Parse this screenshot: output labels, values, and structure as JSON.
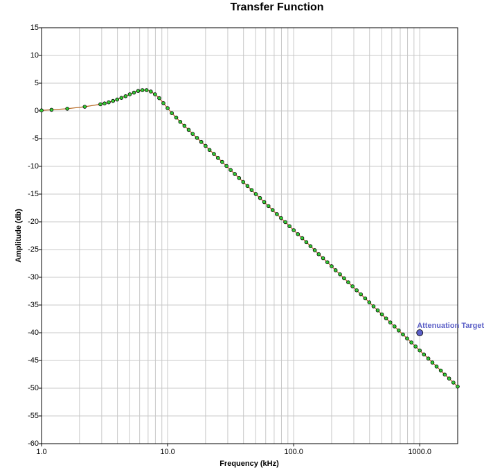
{
  "chart_data": {
    "type": "line",
    "title": "Transfer Function",
    "x_label": "Frequency (kHz)",
    "y_label": "Amplitude (db)",
    "log_x": true,
    "grid": true,
    "xlim": [
      1,
      2000
    ],
    "ylim": [
      -60,
      15
    ],
    "xticks": [
      {
        "value": 1,
        "label": "1.0"
      },
      {
        "value": 10,
        "label": "10.0"
      },
      {
        "value": 100,
        "label": "100.0"
      },
      {
        "value": 1000,
        "label": "1000.0"
      }
    ],
    "xminorticks": [
      2,
      3,
      4,
      5,
      6,
      7,
      8,
      9,
      20,
      30,
      40,
      50,
      60,
      70,
      80,
      90,
      200,
      300,
      400,
      500,
      600,
      700,
      800,
      900,
      2000
    ],
    "yticks": [
      -60,
      -55,
      -50,
      -45,
      -40,
      -35,
      -30,
      -25,
      -20,
      -15,
      -10,
      -5,
      0,
      5,
      10,
      15
    ],
    "x": [
      1,
      1.2,
      1.6,
      2.2,
      2.93,
      3.16,
      3.41,
      3.69,
      3.98,
      4.3,
      4.64,
      5.01,
      5.41,
      5.84,
      6.31,
      6.81,
      7.36,
      7.94,
      8.58,
      9.26,
      10,
      10.8,
      11.7,
      12.6,
      13.6,
      14.7,
      15.8,
      17.1,
      18.5,
      20,
      21.5,
      23.3,
      25.1,
      27.1,
      29.3,
      31.6,
      34.1,
      36.9,
      39.8,
      43,
      46.4,
      50.1,
      54.1,
      58.4,
      63.1,
      68.1,
      73.6,
      79.4,
      85.8,
      92.6,
      100,
      108,
      117,
      126,
      136,
      147,
      158,
      171,
      185,
      200,
      215,
      233,
      251,
      271,
      293,
      316,
      341,
      369,
      398,
      430,
      464,
      501,
      541,
      584,
      631,
      681,
      736,
      794,
      858,
      926,
      1000,
      1080,
      1170,
      1260,
      1360,
      1470,
      1580,
      1710,
      1850,
      2000
    ],
    "series": [
      {
        "color": "#b5651d",
        "marker_color": "#33cc33",
        "values": [
          0.1,
          0.2,
          0.4,
          0.75,
          1.2,
          1.35,
          1.55,
          1.8,
          2.05,
          2.35,
          2.65,
          3.0,
          3.3,
          3.6,
          3.75,
          3.75,
          3.5,
          3.0,
          2.3,
          1.4,
          0.5,
          -0.4,
          -1.2,
          -1.97,
          -2.69,
          -3.42,
          -4.14,
          -4.86,
          -5.59,
          -6.31,
          -7.03,
          -7.76,
          -8.48,
          -9.2,
          -9.93,
          -10.65,
          -11.37,
          -12.1,
          -12.82,
          -13.54,
          -14.27,
          -14.99,
          -15.71,
          -16.44,
          -17.16,
          -17.88,
          -18.61,
          -19.33,
          -20.05,
          -20.78,
          -21.5,
          -22.22,
          -22.95,
          -23.67,
          -24.39,
          -25.12,
          -25.84,
          -26.56,
          -27.29,
          -28.01,
          -28.73,
          -29.46,
          -30.18,
          -30.9,
          -31.63,
          -32.35,
          -33.07,
          -33.8,
          -34.52,
          -35.24,
          -35.97,
          -36.69,
          -37.41,
          -38.14,
          -38.86,
          -39.58,
          -40.31,
          -41.03,
          -41.75,
          -42.48,
          -43.2,
          -43.92,
          -44.65,
          -45.37,
          -46.09,
          -46.82,
          -47.54,
          -48.26,
          -48.99,
          -49.71
        ]
      }
    ],
    "annotations": [
      {
        "text": "Attenuation Target",
        "x": 1000,
        "y": -40,
        "color": "#5b5fc7"
      }
    ]
  }
}
